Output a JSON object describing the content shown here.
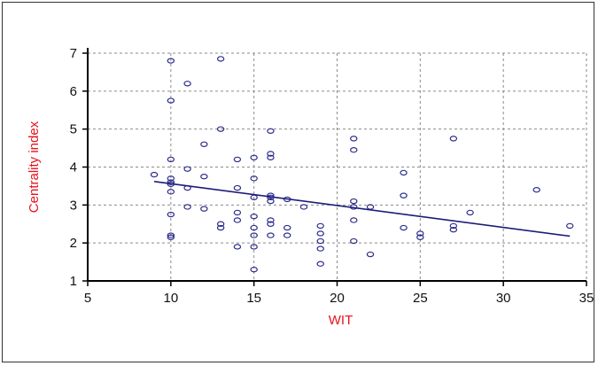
{
  "chart_data": {
    "type": "scatter",
    "title": "",
    "xlabel": "WIT",
    "ylabel": "Centrality index",
    "xlim": [
      5,
      35
    ],
    "ylim": [
      1,
      7
    ],
    "xticks": [
      5,
      10,
      15,
      20,
      25,
      30,
      35
    ],
    "yticks": [
      1,
      2,
      3,
      4,
      5,
      6,
      7
    ],
    "grid": true,
    "points": [
      [
        9,
        3.8
      ],
      [
        10,
        6.8
      ],
      [
        10,
        5.75
      ],
      [
        10,
        4.2
      ],
      [
        10,
        3.7
      ],
      [
        10,
        3.6
      ],
      [
        10,
        3.55
      ],
      [
        10,
        3.35
      ],
      [
        10,
        2.75
      ],
      [
        10,
        2.2
      ],
      [
        10,
        2.15
      ],
      [
        11,
        6.2
      ],
      [
        11,
        3.95
      ],
      [
        11,
        3.45
      ],
      [
        11,
        2.95
      ],
      [
        12,
        4.6
      ],
      [
        12,
        3.75
      ],
      [
        12,
        2.9
      ],
      [
        13,
        6.85
      ],
      [
        13,
        5.0
      ],
      [
        13,
        2.5
      ],
      [
        13,
        2.4
      ],
      [
        14,
        4.2
      ],
      [
        14,
        3.45
      ],
      [
        14,
        2.8
      ],
      [
        14,
        2.6
      ],
      [
        14,
        1.9
      ],
      [
        15,
        4.25
      ],
      [
        15,
        3.7
      ],
      [
        15,
        3.2
      ],
      [
        15,
        2.7
      ],
      [
        15,
        2.4
      ],
      [
        15,
        2.2
      ],
      [
        15,
        1.9
      ],
      [
        15,
        1.3
      ],
      [
        16,
        4.95
      ],
      [
        16,
        4.35
      ],
      [
        16,
        4.25
      ],
      [
        16,
        3.25
      ],
      [
        16,
        3.2
      ],
      [
        16,
        3.1
      ],
      [
        16,
        2.6
      ],
      [
        16,
        2.5
      ],
      [
        16,
        2.2
      ],
      [
        17,
        3.15
      ],
      [
        17,
        2.4
      ],
      [
        17,
        2.2
      ],
      [
        18,
        2.95
      ],
      [
        19,
        2.45
      ],
      [
        19,
        2.25
      ],
      [
        19,
        2.05
      ],
      [
        19,
        1.85
      ],
      [
        19,
        1.45
      ],
      [
        21,
        4.75
      ],
      [
        21,
        4.45
      ],
      [
        21,
        3.1
      ],
      [
        21,
        2.95
      ],
      [
        21,
        2.6
      ],
      [
        21,
        2.05
      ],
      [
        22,
        2.95
      ],
      [
        22,
        1.7
      ],
      [
        24,
        3.85
      ],
      [
        24,
        3.25
      ],
      [
        24,
        2.4
      ],
      [
        25,
        2.25
      ],
      [
        25,
        2.15
      ],
      [
        27,
        4.75
      ],
      [
        27,
        2.45
      ],
      [
        27,
        2.35
      ],
      [
        28,
        2.8
      ],
      [
        32,
        3.4
      ],
      [
        34,
        2.45
      ]
    ],
    "trendline": {
      "x": [
        9,
        34
      ],
      "y": [
        3.62,
        2.18
      ]
    },
    "colors": {
      "marker": "#2b2b8c",
      "trendline": "#1c1c7a",
      "ylabel": "#e8121a",
      "xlabel": "#e8121a",
      "grid": "#8a8a8a"
    }
  }
}
